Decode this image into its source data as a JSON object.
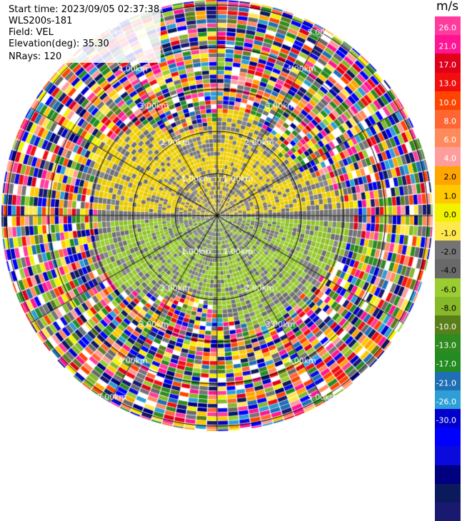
{
  "plot": {
    "start_time": "Start time: 2023/09/05 02:37:38",
    "station": "WLS200s-181",
    "field": "Field: VEL",
    "elevation": "Elevation(deg): 35.30",
    "nrays": "NRays: 120"
  },
  "chart_data": {
    "type": "ppi-radar",
    "field": "VEL",
    "unit": "m/s",
    "range_rings_km": [
      1.0,
      2.0,
      3.0,
      4.0,
      5.0
    ],
    "ring_labels": [
      "1.00km",
      "2.00km",
      "3.00km",
      "4.00km",
      "5.00km"
    ],
    "colorbar": {
      "unit": "m/s",
      "colors": [
        "#ff3c9e",
        "#ff1493",
        "#e0001a",
        "#f20e0e",
        "#ff4400",
        "#ff6633",
        "#ff8a5c",
        "#ff9d9d",
        "#ffa500",
        "#ffc800",
        "#f2f200",
        "#ffe84d",
        "#747474",
        "#696969",
        "#9acd32",
        "#86b82a",
        "#5a7f1a",
        "#2e8b1f",
        "#228b22",
        "#1e6fb5",
        "#2d9fd6",
        "#0000cd",
        "#0000ff",
        "#0a0adc",
        "#000080",
        "#0b1a5c",
        "#191970"
      ],
      "labels": [
        "26.0",
        "21.0",
        "17.0",
        "13.0",
        "10.0",
        "8.0",
        "6.0",
        "4.0",
        "2.0",
        "1.0",
        "0.0",
        "-1.0",
        "-2.0",
        "-4.0",
        "-6.0",
        "-8.0",
        "-10.0",
        "-13.0",
        "-17.0",
        "-21.0",
        "-26.0",
        "-30.0"
      ]
    }
  }
}
